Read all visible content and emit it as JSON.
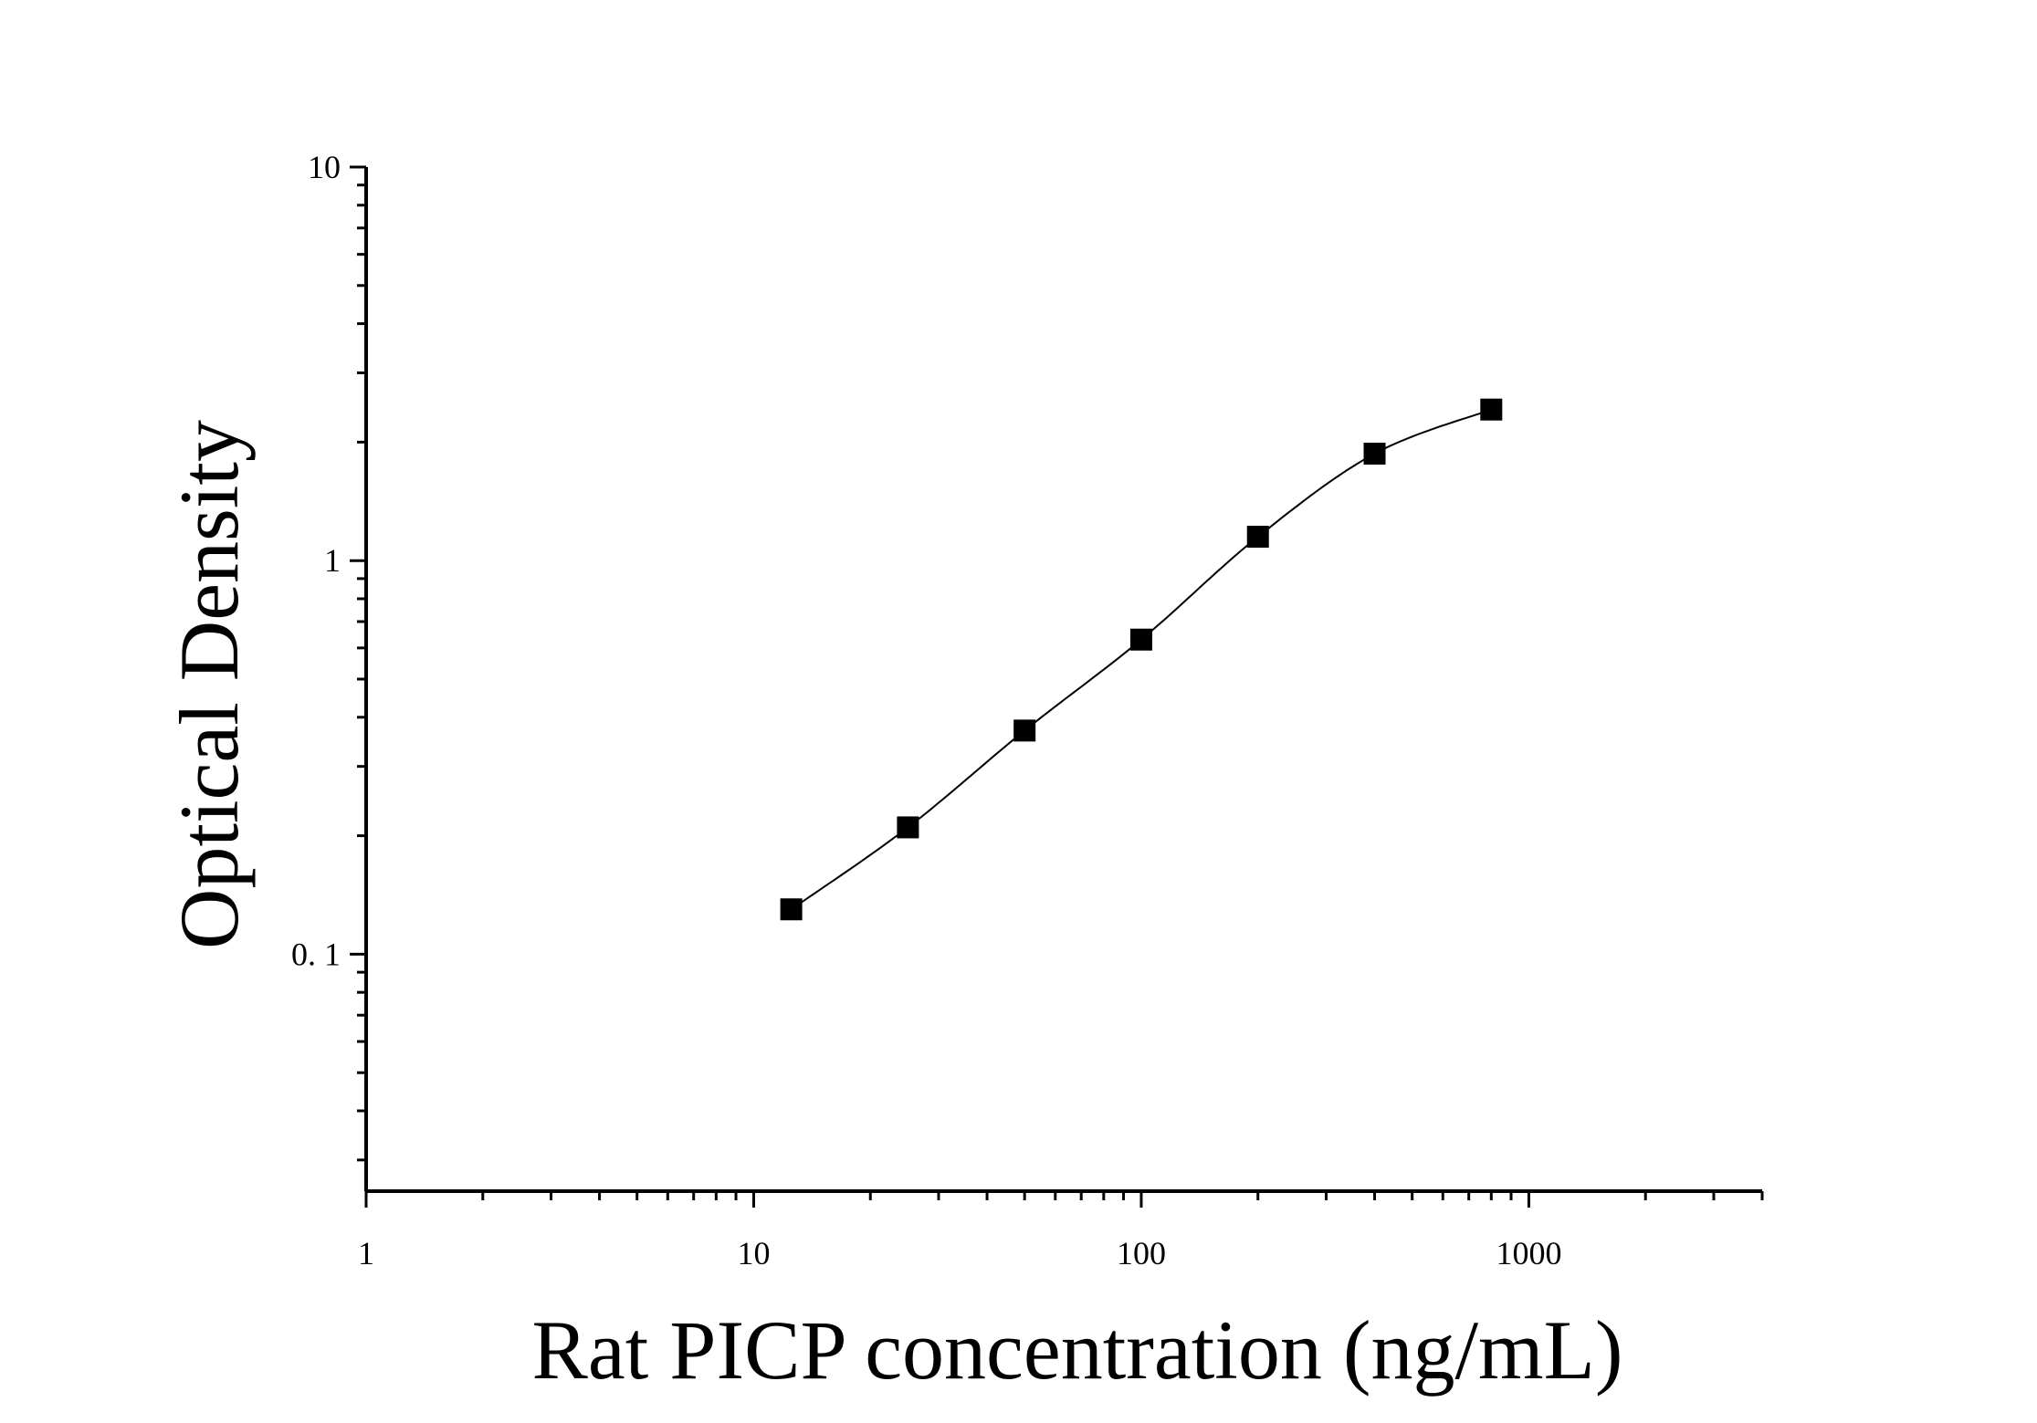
{
  "chart_data": {
    "type": "scatter",
    "title": "",
    "xlabel": "Rat PICP concentration (ng/mL)",
    "ylabel": "Optical Density",
    "x_scale": "log",
    "y_scale": "log",
    "xlim": [
      1,
      4000
    ],
    "ylim": [
      0.025,
      10
    ],
    "x_ticks": [
      {
        "value": 1,
        "label": "1"
      },
      {
        "value": 10,
        "label": "10"
      },
      {
        "value": 100,
        "label": "100"
      },
      {
        "value": 1000,
        "label": "1000"
      }
    ],
    "y_ticks": [
      {
        "value": 0.1,
        "label": "0. 1"
      },
      {
        "value": 1,
        "label": "1"
      },
      {
        "value": 10,
        "label": "10"
      }
    ],
    "grid": false,
    "legend": "none",
    "marker": "square",
    "color": "#000000",
    "series": [
      {
        "x": [
          12.5,
          25,
          50,
          100,
          200,
          400,
          800
        ],
        "y": [
          0.13,
          0.21,
          0.37,
          0.63,
          1.15,
          1.87,
          2.42
        ]
      }
    ],
    "fit_curve": {
      "type": "4PL",
      "x_range": [
        12.5,
        800
      ]
    }
  }
}
